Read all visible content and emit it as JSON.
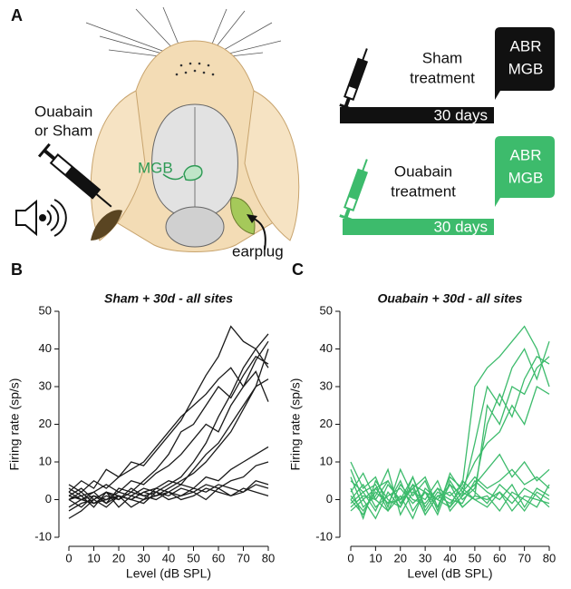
{
  "panel_a": {
    "letter": "A",
    "injection_label": [
      "Ouabain",
      "or Sham"
    ],
    "brain_label": "MGB",
    "earplug_label": "earplug",
    "timelines": [
      {
        "treatment": [
          "Sham",
          "treatment"
        ],
        "duration": "30 days",
        "endpoint": [
          "ABR",
          "MGB"
        ]
      },
      {
        "treatment": [
          "Ouabain",
          "treatment"
        ],
        "duration": "30 days",
        "endpoint": [
          "ABR",
          "MGB"
        ]
      }
    ]
  },
  "chart_data": [
    {
      "type": "line",
      "panel": "B",
      "title": "Sham + 30d - all sites",
      "xlabel": "Level (dB SPL)",
      "ylabel": "Firing rate (sp/s)",
      "color": "#1a1a1a",
      "x": [
        0,
        5,
        10,
        15,
        20,
        25,
        30,
        35,
        40,
        45,
        50,
        55,
        60,
        65,
        70,
        75,
        80
      ],
      "xlim": [
        0,
        80
      ],
      "xticks": [
        0,
        10,
        20,
        30,
        40,
        50,
        60,
        70,
        80
      ],
      "ylim": [
        -10,
        50
      ],
      "yticks": [
        -10,
        0,
        10,
        20,
        30,
        40,
        50
      ],
      "series": [
        {
          "values": [
            0,
            1,
            -2,
            2,
            0,
            3,
            1,
            2,
            4,
            6,
            10,
            15,
            22,
            28,
            35,
            40,
            44
          ]
        },
        {
          "values": [
            2,
            0,
            1,
            -1,
            3,
            2,
            5,
            8,
            12,
            18,
            20,
            25,
            30,
            27,
            33,
            38,
            36
          ]
        },
        {
          "values": [
            -3,
            -1,
            0,
            2,
            1,
            0,
            2,
            3,
            5,
            4,
            8,
            12,
            15,
            20,
            25,
            30,
            40
          ]
        },
        {
          "values": [
            1,
            3,
            0,
            2,
            -2,
            1,
            0,
            3,
            2,
            4,
            3,
            6,
            5,
            8,
            10,
            12,
            14
          ]
        },
        {
          "values": [
            0,
            -2,
            1,
            0,
            2,
            1,
            3,
            2,
            1,
            3,
            2,
            4,
            3,
            5,
            6,
            9,
            10
          ]
        },
        {
          "values": [
            4,
            2,
            5,
            3,
            6,
            8,
            10,
            14,
            18,
            22,
            25,
            28,
            32,
            35,
            30,
            34,
            26
          ]
        },
        {
          "values": [
            -2,
            0,
            -1,
            1,
            0,
            2,
            1,
            0,
            2,
            1,
            3,
            2,
            4,
            3,
            2,
            5,
            4
          ]
        },
        {
          "values": [
            1,
            0,
            2,
            -1,
            1,
            0,
            2,
            1,
            3,
            5,
            7,
            10,
            14,
            18,
            24,
            30,
            32
          ]
        },
        {
          "values": [
            0,
            2,
            -1,
            0,
            1,
            -2,
            0,
            1,
            2,
            0,
            1,
            3,
            2,
            1,
            3,
            2,
            1
          ]
        },
        {
          "values": [
            3,
            1,
            2,
            4,
            2,
            5,
            4,
            7,
            9,
            12,
            16,
            20,
            18,
            25,
            30,
            37,
            42
          ]
        },
        {
          "values": [
            -5,
            -3,
            0,
            -2,
            1,
            0,
            -1,
            2,
            0,
            1,
            2,
            0,
            3,
            1,
            2,
            4,
            3
          ]
        },
        {
          "values": [
            2,
            5,
            3,
            8,
            6,
            10,
            9,
            13,
            17,
            21,
            27,
            33,
            38,
            46,
            42,
            40,
            35
          ]
        }
      ]
    },
    {
      "type": "line",
      "panel": "C",
      "title": "Ouabain + 30d - all sites",
      "xlabel": "Level (dB SPL)",
      "ylabel": "Firing rate (sp/s)",
      "color": "#3dbb6c",
      "x": [
        0,
        5,
        10,
        15,
        20,
        25,
        30,
        35,
        40,
        45,
        50,
        55,
        60,
        65,
        70,
        75,
        80
      ],
      "xlim": [
        0,
        80
      ],
      "xticks": [
        0,
        10,
        20,
        30,
        40,
        50,
        60,
        70,
        80
      ],
      "ylim": [
        -10,
        50
      ],
      "yticks": [
        -10,
        0,
        10,
        20,
        30,
        40,
        50
      ],
      "series": [
        {
          "values": [
            5,
            2,
            -3,
            4,
            0,
            6,
            -2,
            3,
            1,
            4,
            30,
            35,
            38,
            42,
            46,
            40,
            30
          ]
        },
        {
          "values": [
            0,
            -4,
            3,
            -1,
            5,
            -3,
            2,
            0,
            4,
            -2,
            1,
            25,
            20,
            30,
            28,
            35,
            38
          ]
        },
        {
          "values": [
            10,
            3,
            6,
            -2,
            8,
            1,
            5,
            -3,
            7,
            2,
            6,
            3,
            5,
            8,
            4,
            6,
            3
          ]
        },
        {
          "values": [
            -3,
            0,
            -5,
            2,
            -2,
            4,
            -4,
            1,
            -1,
            3,
            0,
            -2,
            2,
            -3,
            1,
            0,
            -1
          ]
        },
        {
          "values": [
            2,
            7,
            0,
            5,
            -1,
            3,
            6,
            -2,
            4,
            1,
            15,
            30,
            25,
            35,
            40,
            32,
            42
          ]
        },
        {
          "values": [
            -1,
            2,
            4,
            -3,
            1,
            -5,
            3,
            0,
            -2,
            5,
            2,
            -1,
            4,
            1,
            -3,
            2,
            0
          ]
        },
        {
          "values": [
            6,
            -2,
            1,
            8,
            -4,
            2,
            0,
            5,
            -3,
            1,
            4,
            8,
            12,
            6,
            10,
            5,
            8
          ]
        },
        {
          "values": [
            0,
            4,
            -2,
            1,
            3,
            -1,
            2,
            -4,
            5,
            0,
            3,
            20,
            28,
            22,
            32,
            38,
            36
          ]
        },
        {
          "values": [
            3,
            -5,
            5,
            0,
            -2,
            6,
            -3,
            2,
            0,
            -1,
            5,
            2,
            0,
            4,
            -2,
            3,
            1
          ]
        },
        {
          "values": [
            -2,
            1,
            0,
            -3,
            4,
            0,
            -1,
            3,
            -2,
            2,
            0,
            1,
            -3,
            2,
            0,
            -2,
            4
          ]
        },
        {
          "values": [
            8,
            0,
            3,
            5,
            -1,
            4,
            2,
            -2,
            6,
            3,
            10,
            15,
            18,
            25,
            20,
            30,
            28
          ]
        },
        {
          "values": [
            1,
            -3,
            2,
            -1,
            0,
            3,
            -4,
            1,
            2,
            -2,
            1,
            0,
            2,
            -1,
            3,
            1,
            -2
          ]
        }
      ]
    }
  ]
}
